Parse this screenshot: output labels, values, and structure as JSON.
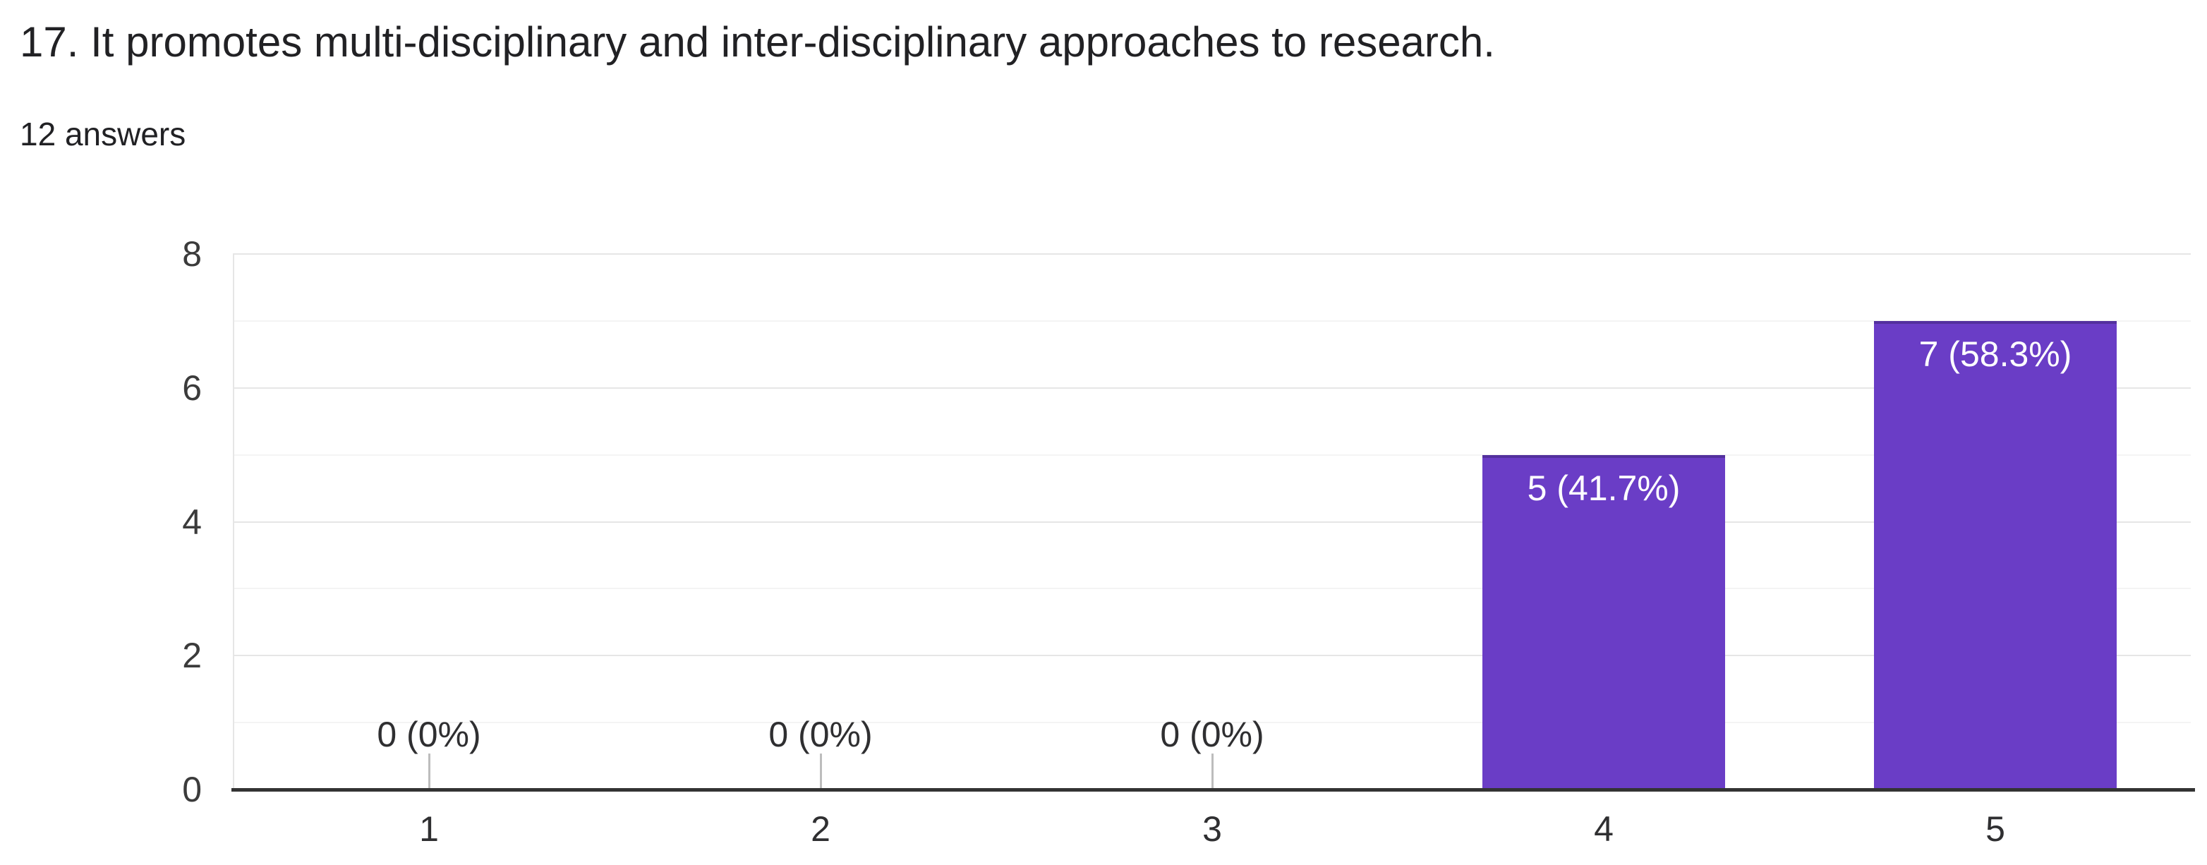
{
  "page": {
    "title": "17. It promotes multi-disciplinary and inter-disciplinary approaches to research.",
    "subtitle": "12 answers"
  },
  "colors": {
    "bar_fill": "#6a3dc6",
    "bar_top_stroke": "#53309e",
    "axis_line": "#333333",
    "gridline_major": "#e6e6e6",
    "gridline_minor": "#f4f4f4",
    "title_text": "#212124",
    "axis_text": "#3b3b3b",
    "bar_label_text": "#ffffff"
  },
  "chart_data": {
    "type": "bar",
    "title": "17. It promotes multi-disciplinary and inter-disciplinary approaches to research.",
    "subtitle": "12 answers",
    "categories": [
      "1",
      "2",
      "3",
      "4",
      "5"
    ],
    "values": [
      0,
      0,
      0,
      5,
      7
    ],
    "value_labels": [
      "0 (0%)",
      "0 (0%)",
      "0 (0%)",
      "5 (41.7%)",
      "7 (58.3%)"
    ],
    "xlabel": "",
    "ylabel": "",
    "ylim": [
      0,
      8
    ],
    "yticks": [
      0,
      2,
      4,
      6,
      8
    ],
    "minor_gridlines_at": [
      1,
      3,
      5,
      7
    ],
    "grid": "horizontal",
    "legend": "none",
    "bar_color": "#6a3dc6"
  }
}
